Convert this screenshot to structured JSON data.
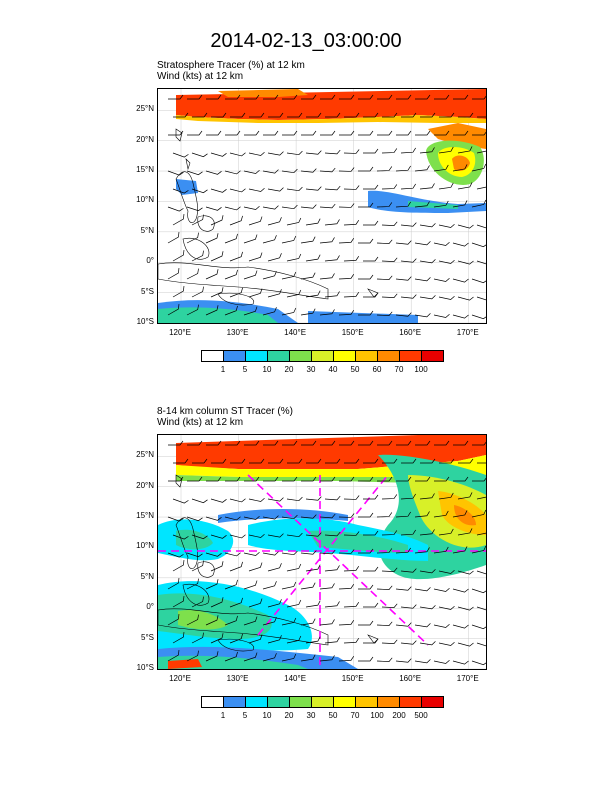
{
  "title": "2014-02-13_03:00:00",
  "panels": [
    {
      "line1": "Stratosphere Tracer   (%)     at   12 km",
      "line2": "Wind   (kts)     at  12 km",
      "colorbar": {
        "labels": [
          "1",
          "5",
          "10",
          "20",
          "30",
          "40",
          "50",
          "60",
          "70",
          "100"
        ],
        "colors": [
          "#ffffff",
          "#3b8ff2",
          "#00e5ff",
          "#2ed3a0",
          "#7ee04c",
          "#d8f028",
          "#ffff00",
          "#ffc400",
          "#ff8a00",
          "#ff3a00",
          "#e80000"
        ]
      }
    },
    {
      "line1": "8-14 km column ST Tracer   (%)",
      "line2": "Wind   (kts)     at  12 km",
      "colorbar": {
        "labels": [
          "1",
          "5",
          "10",
          "20",
          "30",
          "50",
          "70",
          "100",
          "200",
          "500"
        ],
        "colors": [
          "#ffffff",
          "#3b8ff2",
          "#00e5ff",
          "#2ed3a0",
          "#7ee04c",
          "#d8f028",
          "#ffff00",
          "#ffc400",
          "#ff8a00",
          "#ff3a00",
          "#e80000"
        ]
      }
    }
  ],
  "lat_labels": [
    "25°N",
    "20°N",
    "15°N",
    "10°N",
    "5°N",
    "0°",
    "5°S",
    "10°S"
  ],
  "lon_labels": [
    "120°E",
    "130°E",
    "140°E",
    "150°E",
    "160°E",
    "170°E"
  ],
  "map_extent": {
    "lon_min": 116,
    "lon_max": 173,
    "lat_min": -10,
    "lat_max": 28.5
  },
  "lat_ticks": [
    25,
    20,
    15,
    10,
    5,
    0,
    -5,
    -10
  ],
  "lon_ticks": [
    120,
    130,
    140,
    150,
    160,
    170
  ]
}
